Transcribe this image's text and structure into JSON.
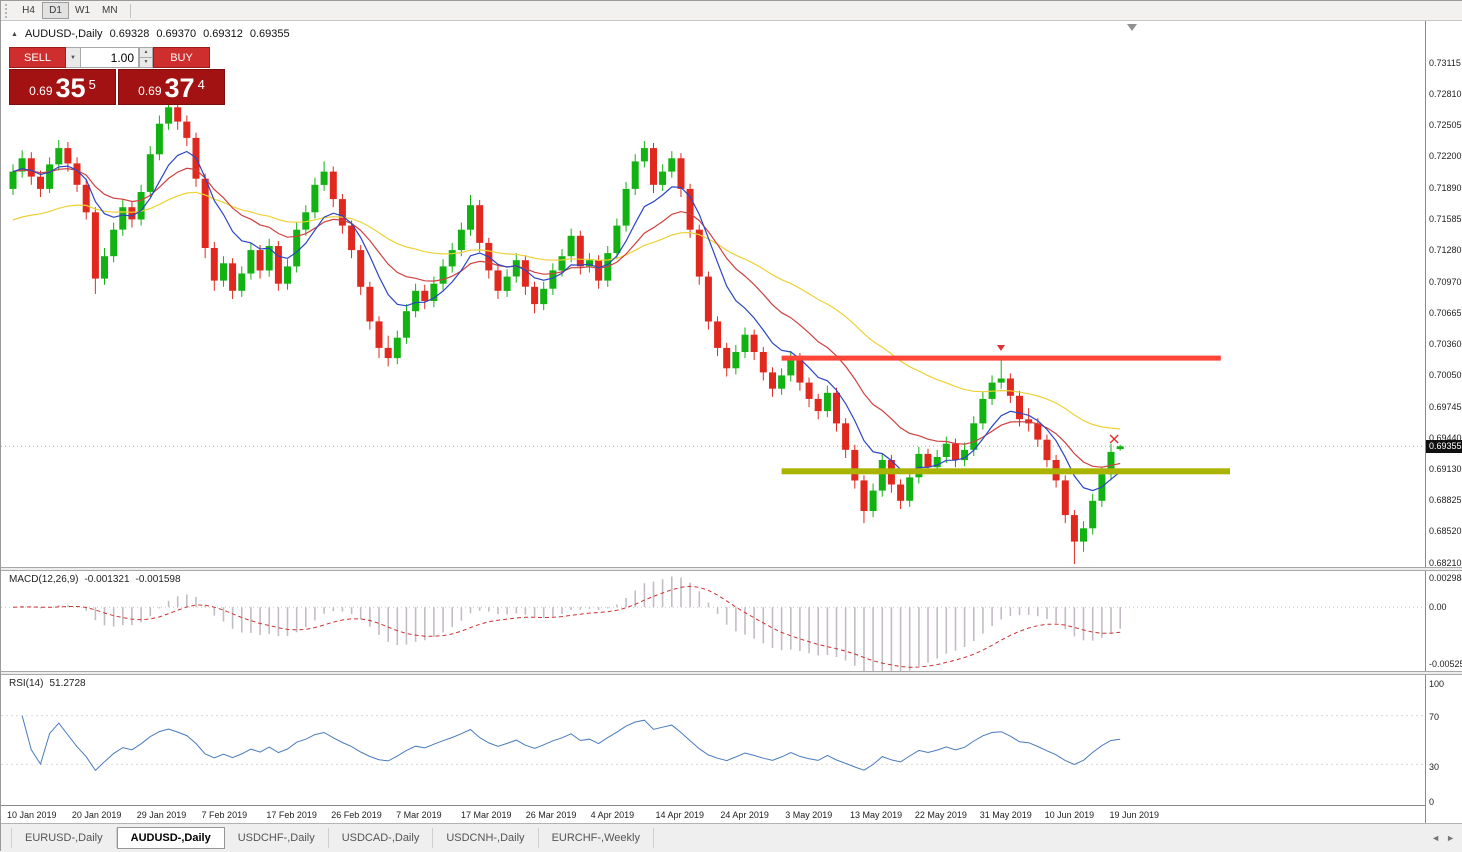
{
  "icons": {
    "collapse": "▲",
    "dropdown": "▼",
    "spin_up": "▲",
    "spin_down": "▼",
    "tab_left": "◄",
    "tab_right": "►"
  },
  "toolbar": {
    "timeframes": [
      {
        "label": "H4",
        "active": false
      },
      {
        "label": "D1",
        "active": true
      },
      {
        "label": "W1",
        "active": false
      },
      {
        "label": "MN",
        "active": false
      }
    ]
  },
  "chart_header": {
    "title": "AUDUSD-,Daily",
    "open": "0.69328",
    "high": "0.69370",
    "low": "0.69312",
    "close": "0.69355"
  },
  "trade_panel": {
    "sell_label": "SELL",
    "buy_label": "BUY",
    "volume": "1.00",
    "sell_price": {
      "prefix": "0.69",
      "big": "35",
      "sup": "5"
    },
    "buy_price": {
      "prefix": "0.69",
      "big": "37",
      "sup": "4"
    }
  },
  "macd_panel": {
    "title": "MACD(12,26,9)",
    "value_main": "-0.001321",
    "value_signal": "-0.001598",
    "scale_top": "0.002984",
    "scale_zero": "0.00",
    "scale_bottom": "-0.005256"
  },
  "rsi_panel": {
    "title": "RSI(14)",
    "value": "51.2728",
    "scale": [
      "100",
      "70",
      "30",
      "0"
    ]
  },
  "price_scale": {
    "current": "0.69355",
    "ticks": [
      "0.73115",
      "0.72810",
      "0.72505",
      "0.72200",
      "0.71890",
      "0.71585",
      "0.71280",
      "0.70970",
      "0.70665",
      "0.70360",
      "0.70050",
      "0.69745",
      "0.69440",
      "0.69130",
      "0.68825",
      "0.68520",
      "0.68210"
    ]
  },
  "tabs": [
    {
      "label": "EURUSD-,Daily",
      "active": false
    },
    {
      "label": "AUDUSD-,Daily",
      "active": true
    },
    {
      "label": "USDCHF-,Daily",
      "active": false
    },
    {
      "label": "USDCAD-,Daily",
      "active": false
    },
    {
      "label": "USDCNH-,Daily",
      "active": false
    },
    {
      "label": "EURCHF-,Weekly",
      "active": false
    }
  ],
  "chart_data": {
    "type": "candlestick",
    "symbol": "AUDUSD",
    "timeframe": "Daily",
    "current_price": 0.69355,
    "bull_color": "#12b212",
    "bear_color": "#e0281e",
    "y_range": [
      0.6821,
      0.73115
    ],
    "y_ticks": [
      0.73115,
      0.7281,
      0.72505,
      0.722,
      0.7189,
      0.71585,
      0.7128,
      0.7097,
      0.70665,
      0.7036,
      0.7005,
      0.69745,
      0.6944,
      0.6913,
      0.68825,
      0.6852,
      0.6821
    ],
    "x_axis_dates": [
      "10 Jan 2019",
      "20 Jan 2019",
      "29 Jan 2019",
      "7 Feb 2019",
      "17 Feb 2019",
      "26 Feb 2019",
      "7 Mar 2019",
      "17 Mar 2019",
      "26 Mar 2019",
      "4 Apr 2019",
      "14 Apr 2019",
      "24 Apr 2019",
      "3 May 2019",
      "13 May 2019",
      "22 May 2019",
      "31 May 2019",
      "10 Jun 2019",
      "19 Jun 2019"
    ],
    "ohlc": [
      [
        0.7188,
        0.7212,
        0.7182,
        0.7205
      ],
      [
        0.7205,
        0.7226,
        0.7199,
        0.7218
      ],
      [
        0.7218,
        0.7224,
        0.7192,
        0.72
      ],
      [
        0.72,
        0.7206,
        0.718,
        0.7188
      ],
      [
        0.7188,
        0.7219,
        0.7184,
        0.7212
      ],
      [
        0.7212,
        0.7236,
        0.7206,
        0.7228
      ],
      [
        0.7228,
        0.7234,
        0.7205,
        0.7213
      ],
      [
        0.7213,
        0.7219,
        0.7185,
        0.7192
      ],
      [
        0.7192,
        0.7198,
        0.7158,
        0.7165
      ],
      [
        0.7165,
        0.717,
        0.7085,
        0.71
      ],
      [
        0.71,
        0.713,
        0.7094,
        0.7122
      ],
      [
        0.7122,
        0.7155,
        0.7116,
        0.7148
      ],
      [
        0.7148,
        0.7178,
        0.7142,
        0.717
      ],
      [
        0.717,
        0.7176,
        0.715,
        0.7158
      ],
      [
        0.7158,
        0.7192,
        0.7152,
        0.7185
      ],
      [
        0.7185,
        0.723,
        0.718,
        0.7222
      ],
      [
        0.7222,
        0.726,
        0.7216,
        0.7252
      ],
      [
        0.7252,
        0.7278,
        0.7246,
        0.7268
      ],
      [
        0.7268,
        0.7275,
        0.7246,
        0.7254
      ],
      [
        0.7254,
        0.726,
        0.723,
        0.7238
      ],
      [
        0.7238,
        0.7243,
        0.719,
        0.7198
      ],
      [
        0.7198,
        0.7203,
        0.712,
        0.713
      ],
      [
        0.713,
        0.7136,
        0.7088,
        0.7098
      ],
      [
        0.7098,
        0.7122,
        0.7092,
        0.7115
      ],
      [
        0.7115,
        0.712,
        0.708,
        0.7088
      ],
      [
        0.7088,
        0.7112,
        0.7082,
        0.7105
      ],
      [
        0.7105,
        0.7135,
        0.7099,
        0.7128
      ],
      [
        0.7128,
        0.7133,
        0.71,
        0.7108
      ],
      [
        0.7108,
        0.7139,
        0.7102,
        0.7132
      ],
      [
        0.7132,
        0.7137,
        0.7088,
        0.7095
      ],
      [
        0.7095,
        0.7119,
        0.7089,
        0.7112
      ],
      [
        0.7112,
        0.7155,
        0.7106,
        0.7148
      ],
      [
        0.7148,
        0.7172,
        0.7142,
        0.7165
      ],
      [
        0.7165,
        0.7199,
        0.7159,
        0.7192
      ],
      [
        0.7192,
        0.7215,
        0.7186,
        0.7205
      ],
      [
        0.7205,
        0.721,
        0.717,
        0.7178
      ],
      [
        0.7178,
        0.7183,
        0.7144,
        0.7152
      ],
      [
        0.7152,
        0.7157,
        0.712,
        0.7128
      ],
      [
        0.7128,
        0.7133,
        0.7084,
        0.7092
      ],
      [
        0.7092,
        0.7097,
        0.705,
        0.7058
      ],
      [
        0.7058,
        0.7063,
        0.7022,
        0.7032
      ],
      [
        0.7032,
        0.7044,
        0.7014,
        0.7022
      ],
      [
        0.7022,
        0.7049,
        0.7016,
        0.7042
      ],
      [
        0.7042,
        0.7075,
        0.7036,
        0.7068
      ],
      [
        0.7068,
        0.7095,
        0.7062,
        0.7088
      ],
      [
        0.7088,
        0.7094,
        0.707,
        0.7078
      ],
      [
        0.7078,
        0.7102,
        0.7072,
        0.7095
      ],
      [
        0.7095,
        0.7119,
        0.7089,
        0.7112
      ],
      [
        0.7112,
        0.7135,
        0.7106,
        0.7128
      ],
      [
        0.7128,
        0.7155,
        0.7122,
        0.7148
      ],
      [
        0.7148,
        0.7182,
        0.7142,
        0.7172
      ],
      [
        0.7172,
        0.7177,
        0.7126,
        0.7135
      ],
      [
        0.7135,
        0.714,
        0.71,
        0.7108
      ],
      [
        0.7108,
        0.7113,
        0.708,
        0.7088
      ],
      [
        0.7088,
        0.7109,
        0.7082,
        0.7102
      ],
      [
        0.7102,
        0.7125,
        0.7096,
        0.7118
      ],
      [
        0.7118,
        0.7123,
        0.7084,
        0.7092
      ],
      [
        0.7092,
        0.7097,
        0.7066,
        0.7075
      ],
      [
        0.7075,
        0.7097,
        0.7069,
        0.709
      ],
      [
        0.709,
        0.7115,
        0.7084,
        0.7108
      ],
      [
        0.7108,
        0.7129,
        0.7102,
        0.7122
      ],
      [
        0.7122,
        0.7149,
        0.7116,
        0.7142
      ],
      [
        0.7142,
        0.7147,
        0.7104,
        0.7112
      ],
      [
        0.7112,
        0.7125,
        0.7106,
        0.7118
      ],
      [
        0.7118,
        0.7123,
        0.709,
        0.7098
      ],
      [
        0.7098,
        0.7132,
        0.7092,
        0.7125
      ],
      [
        0.7125,
        0.7159,
        0.7119,
        0.7152
      ],
      [
        0.7152,
        0.7195,
        0.7146,
        0.7188
      ],
      [
        0.7188,
        0.7222,
        0.7182,
        0.7215
      ],
      [
        0.7215,
        0.7235,
        0.7209,
        0.7228
      ],
      [
        0.7228,
        0.7233,
        0.7184,
        0.7192
      ],
      [
        0.7192,
        0.7212,
        0.7186,
        0.7205
      ],
      [
        0.7205,
        0.7225,
        0.7199,
        0.7218
      ],
      [
        0.7218,
        0.7223,
        0.718,
        0.7188
      ],
      [
        0.7188,
        0.7193,
        0.714,
        0.7148
      ],
      [
        0.7148,
        0.7153,
        0.7094,
        0.7102
      ],
      [
        0.7102,
        0.7107,
        0.705,
        0.7058
      ],
      [
        0.7058,
        0.7063,
        0.7024,
        0.7032
      ],
      [
        0.7032,
        0.7037,
        0.7004,
        0.7012
      ],
      [
        0.7012,
        0.7035,
        0.7006,
        0.7028
      ],
      [
        0.7028,
        0.7052,
        0.7022,
        0.7045
      ],
      [
        0.7045,
        0.705,
        0.702,
        0.7028
      ],
      [
        0.7028,
        0.7033,
        0.7,
        0.7008
      ],
      [
        0.7008,
        0.7013,
        0.6984,
        0.6992
      ],
      [
        0.6992,
        0.7012,
        0.6986,
        0.7005
      ],
      [
        0.7005,
        0.7029,
        0.6999,
        0.7022
      ],
      [
        0.7022,
        0.7027,
        0.699,
        0.6998
      ],
      [
        0.6998,
        0.7003,
        0.6974,
        0.6982
      ],
      [
        0.6982,
        0.6987,
        0.6962,
        0.697
      ],
      [
        0.697,
        0.6995,
        0.6964,
        0.6988
      ],
      [
        0.6988,
        0.6993,
        0.695,
        0.6958
      ],
      [
        0.6958,
        0.6963,
        0.6924,
        0.6932
      ],
      [
        0.6932,
        0.6937,
        0.6894,
        0.6902
      ],
      [
        0.6902,
        0.6907,
        0.686,
        0.6872
      ],
      [
        0.6872,
        0.6899,
        0.6866,
        0.6892
      ],
      [
        0.6892,
        0.6929,
        0.6886,
        0.6922
      ],
      [
        0.6922,
        0.6927,
        0.689,
        0.6898
      ],
      [
        0.6898,
        0.6903,
        0.6874,
        0.6882
      ],
      [
        0.6882,
        0.6912,
        0.6876,
        0.6905
      ],
      [
        0.6905,
        0.6935,
        0.6899,
        0.6928
      ],
      [
        0.6928,
        0.6933,
        0.6908,
        0.6915
      ],
      [
        0.6915,
        0.6932,
        0.6909,
        0.6925
      ],
      [
        0.6925,
        0.6945,
        0.6919,
        0.6938
      ],
      [
        0.6938,
        0.6943,
        0.6915,
        0.6922
      ],
      [
        0.6922,
        0.6939,
        0.6916,
        0.6932
      ],
      [
        0.6932,
        0.6965,
        0.6926,
        0.6958
      ],
      [
        0.6958,
        0.6989,
        0.6952,
        0.6982
      ],
      [
        0.6982,
        0.7005,
        0.6976,
        0.6998
      ],
      [
        0.6998,
        0.7022,
        0.6992,
        0.7002
      ],
      [
        0.7002,
        0.7007,
        0.6978,
        0.6985
      ],
      [
        0.6985,
        0.699,
        0.6955,
        0.6962
      ],
      [
        0.6962,
        0.6973,
        0.695,
        0.6958
      ],
      [
        0.6958,
        0.6963,
        0.6935,
        0.6942
      ],
      [
        0.6942,
        0.6947,
        0.6915,
        0.6922
      ],
      [
        0.6922,
        0.6927,
        0.6895,
        0.6902
      ],
      [
        0.6902,
        0.6907,
        0.686,
        0.6868
      ],
      [
        0.6868,
        0.6873,
        0.682,
        0.6842
      ],
      [
        0.6842,
        0.6862,
        0.6832,
        0.6855
      ],
      [
        0.6855,
        0.6889,
        0.6849,
        0.6882
      ],
      [
        0.6882,
        0.6915,
        0.6876,
        0.6908
      ],
      [
        0.6908,
        0.6938,
        0.6902,
        0.693
      ],
      [
        0.69328,
        0.6937,
        0.69312,
        0.69355
      ]
    ],
    "overlays": {
      "resistance": {
        "price": 0.7022,
        "from_bar": 84,
        "to_bar": 132,
        "color": "#ff4438",
        "thickness": 5
      },
      "support": {
        "price": 0.6911,
        "from_bar": 84,
        "to_bar": 133,
        "color": "#aab400",
        "thickness": 6
      },
      "moving_averages": [
        {
          "name": "fast",
          "period": 8,
          "color": "#2b45c4"
        },
        {
          "name": "medium",
          "period": 17,
          "color": "#d04040"
        },
        {
          "name": "slow",
          "period": 40,
          "color": "#ecd235"
        }
      ]
    },
    "indicators": {
      "macd": {
        "params": [
          12,
          26,
          9
        ],
        "main": -0.001321,
        "signal": -0.001598,
        "scale_max": 0.002984,
        "scale_min": -0.005256,
        "histogram_color": "#c4bcc4",
        "signal_color": "#cc3333"
      },
      "rsi": {
        "period": 14,
        "value": 51.2728,
        "range": [
          0,
          100
        ],
        "levels": [
          70,
          30
        ],
        "line_color": "#4a7bbd"
      }
    }
  }
}
